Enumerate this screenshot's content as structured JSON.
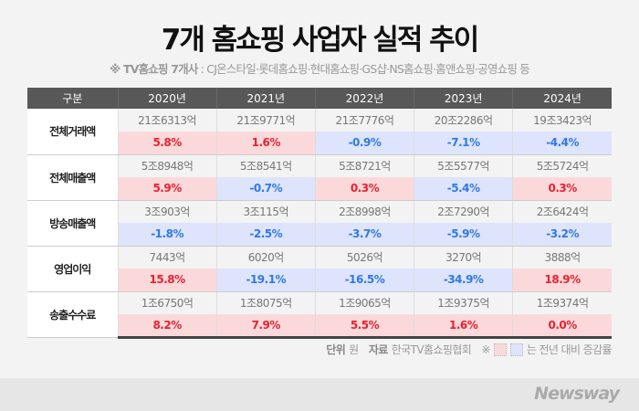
{
  "title": "7개 홈쇼핑 사업자 실적 추이",
  "subtitle_bold": "※ TV홈쇼핑 7개사",
  "subtitle_rest": " : CJ온스타일·롯데홈쇼핑·현대홈쇼핑·GS샵·NS홈쇼핑·홈앤쇼핑·공영쇼핑 등",
  "colors": {
    "increase_bg": "#fbd9db",
    "increase_text": "#e8222f",
    "decrease_bg": "#dde4fb",
    "decrease_text": "#2f79e6",
    "header": "#585858"
  },
  "chart_data": {
    "type": "table",
    "header": [
      "구분",
      "2020년",
      "2021년",
      "2022년",
      "2023년",
      "2024년"
    ],
    "rows": [
      {
        "label": "전체거래액",
        "values": [
          "21조6313억",
          "21조9771억",
          "21조7776억",
          "20조2286억",
          "19조3423억"
        ],
        "changes": [
          "5.8%",
          "1.6%",
          "-0.9%",
          "-7.1%",
          "-4.4%"
        ]
      },
      {
        "label": "전체매출액",
        "values": [
          "5조8948억",
          "5조8541억",
          "5조8721억",
          "5조5577억",
          "5조5724억"
        ],
        "changes": [
          "5.9%",
          "-0.7%",
          "0.3%",
          "-5.4%",
          "0.3%"
        ]
      },
      {
        "label": "방송매출액",
        "values": [
          "3조903억",
          "3조115억",
          "2조8998억",
          "2조7290억",
          "2조6424억"
        ],
        "changes": [
          "-1.8%",
          "-2.5%",
          "-3.7%",
          "-5.9%",
          "-3.2%"
        ]
      },
      {
        "label": "영업이익",
        "values": [
          "7443억",
          "6020억",
          "5026억",
          "3270억",
          "3888억"
        ],
        "changes": [
          "15.8%",
          "-19.1%",
          "-16.5%",
          "-34.9%",
          "18.9%"
        ]
      },
      {
        "label": "송출수수료",
        "values": [
          "1조6750억",
          "1조8075억",
          "1조9065억",
          "1조9375억",
          "1조9374억"
        ],
        "changes": [
          "8.2%",
          "7.9%",
          "5.5%",
          "1.6%",
          "0.0%"
        ]
      }
    ]
  },
  "footer": {
    "unit_label": "단위",
    "unit": "원",
    "source_label": "자료",
    "source": "한국TV홈쇼핑협회",
    "note_mark": "※",
    "note": "는 전년 대비 증감률"
  },
  "logo": "Newsway"
}
